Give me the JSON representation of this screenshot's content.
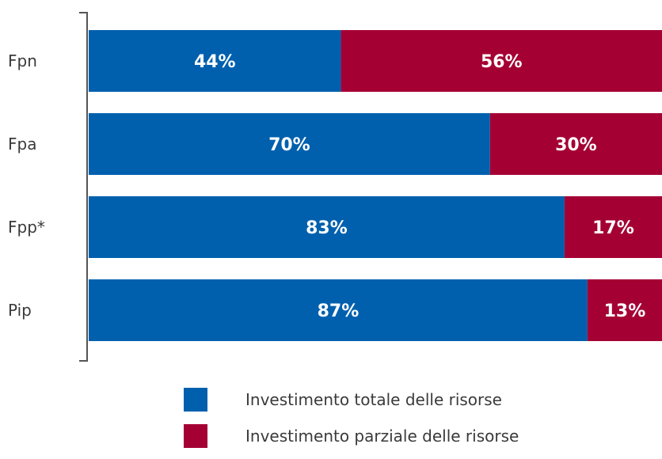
{
  "chart_data": {
    "type": "bar",
    "orientation": "horizontal",
    "stacked": true,
    "percent_stacked": true,
    "categories": [
      "Fpn",
      "Fpa",
      "Fpp*",
      "Pip"
    ],
    "series": [
      {
        "name": "Investimento totale delle risorse",
        "values": [
          44,
          70,
          83,
          87
        ],
        "labels": [
          "44%",
          "70%",
          "83%",
          "87%"
        ],
        "color": "#0060ae"
      },
      {
        "name": "Investimento parziale delle risorse",
        "values": [
          56,
          30,
          17,
          13
        ],
        "labels": [
          "56%",
          "30%",
          "17%",
          "13%"
        ],
        "color": "#a50034"
      }
    ],
    "xlim": [
      0,
      100
    ],
    "grid": false,
    "legend_position": "bottom"
  }
}
